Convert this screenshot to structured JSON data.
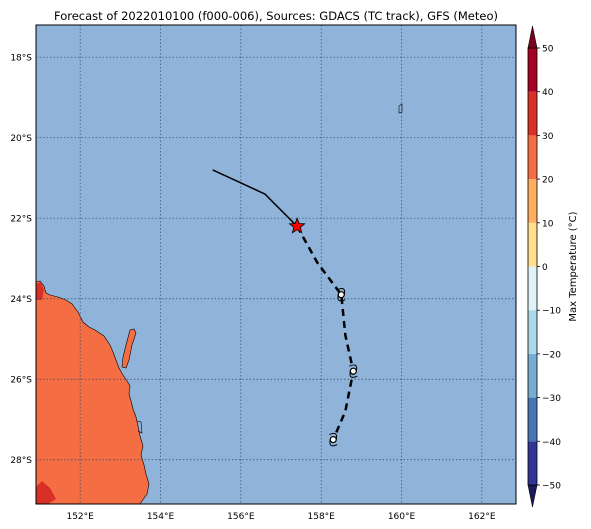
{
  "title": "Forecast of 2022010100 (f000-006), Sources: GDACS (TC track), GFS (Meteo)",
  "map": {
    "lon_range": [
      150.9,
      162.85
    ],
    "lat_range": [
      -29.1,
      -17.2
    ],
    "lat_ticks": [
      {
        "value": -18,
        "label": "18°S"
      },
      {
        "value": -20,
        "label": "20°S"
      },
      {
        "value": -22,
        "label": "22°S"
      },
      {
        "value": -24,
        "label": "24°S"
      },
      {
        "value": -26,
        "label": "26°S"
      },
      {
        "value": -28,
        "label": "28°S"
      }
    ],
    "lon_ticks": [
      {
        "value": 152,
        "label": "152°E"
      },
      {
        "value": 154,
        "label": "154°E"
      },
      {
        "value": 156,
        "label": "156°E"
      },
      {
        "value": 158,
        "label": "158°E"
      },
      {
        "value": 160,
        "label": "160°E"
      },
      {
        "value": 162,
        "label": "162°E"
      }
    ],
    "gridlines": true,
    "ocean_color": "#8fb3d9",
    "land_color": "#f46d43",
    "hot_land_color": "#d73027",
    "past_track": [
      [
        155.3,
        -20.8
      ],
      [
        156.6,
        -21.4
      ],
      [
        157.4,
        -22.2
      ]
    ],
    "current_position": {
      "lon": 157.4,
      "lat": -22.2,
      "marker": "red-star"
    },
    "forecast_track": [
      [
        157.4,
        -22.2
      ],
      [
        157.9,
        -23.1
      ],
      [
        158.5,
        -23.9
      ],
      [
        158.6,
        -24.9
      ],
      [
        158.8,
        -25.8
      ],
      [
        158.6,
        -26.8
      ],
      [
        158.3,
        -27.5
      ]
    ],
    "forecast_points": [
      {
        "lon": 158.5,
        "lat": -23.9
      },
      {
        "lon": 158.8,
        "lat": -25.8
      },
      {
        "lon": 158.3,
        "lat": -27.5
      }
    ],
    "track_color": "#000000",
    "star_color": "#ff0000"
  },
  "colorbar": {
    "label": "Max Temperature (°C)",
    "range": [
      -50,
      50
    ],
    "ticks": [
      {
        "value": 50,
        "label": "50"
      },
      {
        "value": 40,
        "label": "40"
      },
      {
        "value": 30,
        "label": "30"
      },
      {
        "value": 20,
        "label": "20"
      },
      {
        "value": 10,
        "label": "10"
      },
      {
        "value": 0,
        "label": "0"
      },
      {
        "value": -10,
        "label": "−10"
      },
      {
        "value": -20,
        "label": "−20"
      },
      {
        "value": -30,
        "label": "−30"
      },
      {
        "value": -40,
        "label": "−40"
      },
      {
        "value": -50,
        "label": "−50"
      }
    ],
    "colors": [
      "#313695",
      "#4575b4",
      "#74add1",
      "#abd9e9",
      "#e0f3f8",
      "#fee090",
      "#fdae61",
      "#f46d43",
      "#d73027",
      "#a50026"
    ],
    "extend_low_color": "#1a1a5e",
    "extend_high_color": "#7a0020"
  }
}
